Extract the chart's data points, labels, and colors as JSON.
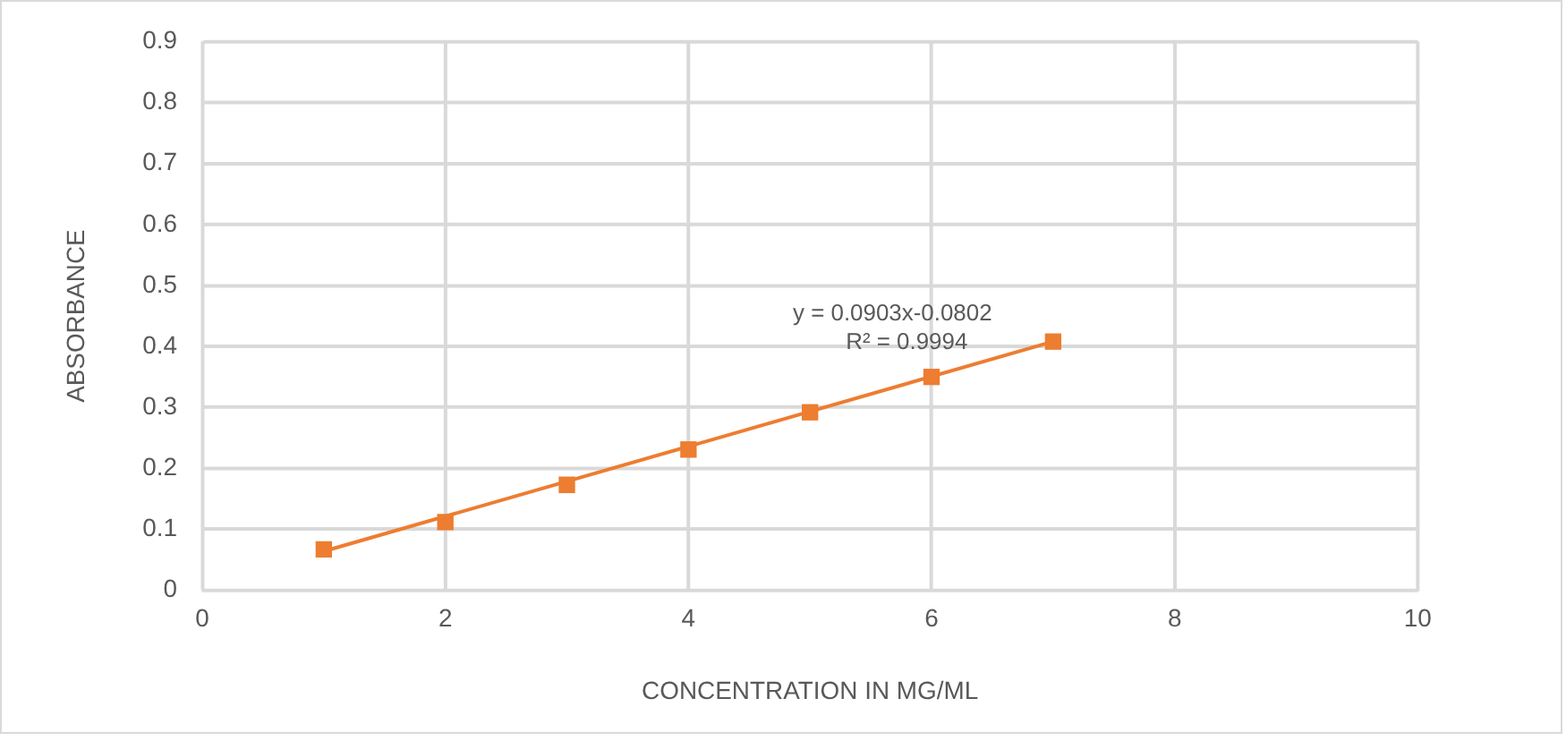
{
  "chart_data": {
    "type": "scatter",
    "xlabel": "CONCENTRATION IN MG/ML",
    "ylabel": "ABSORBANCE",
    "series": [
      {
        "color": "#ed7d31",
        "x": [
          1,
          2,
          3,
          4,
          5,
          6,
          7
        ],
        "values": [
          0.067,
          0.112,
          0.173,
          0.231,
          0.292,
          0.35,
          0.408
        ],
        "marker": "square"
      },
      {
        "type": "line",
        "color": "#ed7d31",
        "x": [
          1,
          7
        ],
        "values": [
          0.064,
          0.408
        ],
        "marker": "none",
        "line_style": "solid"
      }
    ],
    "annotations": [
      "y = 0.0903x-0.0802",
      "R² = 0.9994"
    ],
    "xlim": [
      0,
      10
    ],
    "xticks": [
      0,
      2,
      4,
      6,
      8,
      10
    ],
    "ylim": [
      0,
      0.9
    ],
    "yticks": [
      0,
      0.1,
      0.2,
      0.3,
      0.4,
      0.5,
      0.6,
      0.7,
      0.8,
      0.9
    ],
    "grid": true,
    "legend": false
  }
}
